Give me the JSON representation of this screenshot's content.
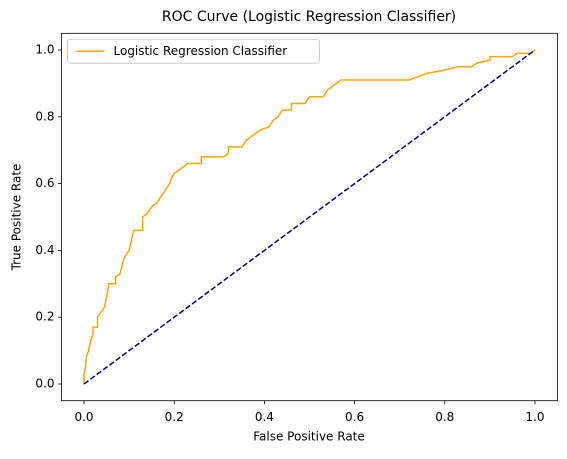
{
  "chart_data": {
    "type": "line",
    "title": "ROC Curve (Logistic Regression Classifier)",
    "x_label": "False Positive Rate",
    "y_label": "True Positive Rate",
    "xlim": [
      -0.05,
      1.05
    ],
    "ylim": [
      -0.05,
      1.05
    ],
    "xticks": [
      {
        "value": 0,
        "label": "0.0"
      },
      0.2,
      0.4,
      0.6,
      0.8,
      {
        "value": 1,
        "label": "1.0"
      }
    ],
    "yticks": [
      {
        "value": 0,
        "label": "0.0"
      },
      0.2,
      0.4,
      0.6,
      0.8,
      {
        "value": 1,
        "label": "1.0"
      }
    ],
    "legend": "upper left",
    "series": [
      {
        "name": "Logistic Regression Classifier",
        "color": "#ffa500",
        "x": [
          0,
          0,
          0.003,
          0.005,
          0.01,
          0.015,
          0.02,
          0.02,
          0.03,
          0.03,
          0.04,
          0.045,
          0.05,
          0.055,
          0.07,
          0.07,
          0.08,
          0.085,
          0.09,
          0.1,
          0.105,
          0.11,
          0.13,
          0.13,
          0.14,
          0.15,
          0.16,
          0.17,
          0.18,
          0.19,
          0.195,
          0.2,
          0.21,
          0.22,
          0.23,
          0.26,
          0.26,
          0.31,
          0.32,
          0.32,
          0.35,
          0.36,
          0.38,
          0.39,
          0.41,
          0.42,
          0.43,
          0.44,
          0.46,
          0.46,
          0.49,
          0.5,
          0.53,
          0.54,
          0.55,
          0.56,
          0.57,
          0.72,
          0.74,
          0.76,
          0.8,
          0.83,
          0.86,
          0.87,
          0.9,
          0.9,
          0.95,
          0.96,
          0.99,
          1
        ],
        "values": [
          0,
          0.03,
          0.05,
          0.08,
          0.1,
          0.13,
          0.15,
          0.17,
          0.17,
          0.2,
          0.22,
          0.23,
          0.26,
          0.3,
          0.3,
          0.32,
          0.33,
          0.36,
          0.38,
          0.4,
          0.43,
          0.46,
          0.46,
          0.5,
          0.51,
          0.53,
          0.54,
          0.56,
          0.58,
          0.6,
          0.62,
          0.63,
          0.64,
          0.65,
          0.66,
          0.66,
          0.68,
          0.68,
          0.69,
          0.71,
          0.71,
          0.73,
          0.75,
          0.76,
          0.77,
          0.79,
          0.8,
          0.82,
          0.82,
          0.84,
          0.84,
          0.86,
          0.86,
          0.88,
          0.89,
          0.9,
          0.91,
          0.91,
          0.92,
          0.93,
          0.94,
          0.95,
          0.95,
          0.96,
          0.97,
          0.98,
          0.98,
          0.99,
          0.99,
          1
        ]
      },
      {
        "color": "#000080",
        "dashed": true,
        "x": [
          0,
          1
        ],
        "values": [
          0,
          1
        ]
      }
    ]
  }
}
